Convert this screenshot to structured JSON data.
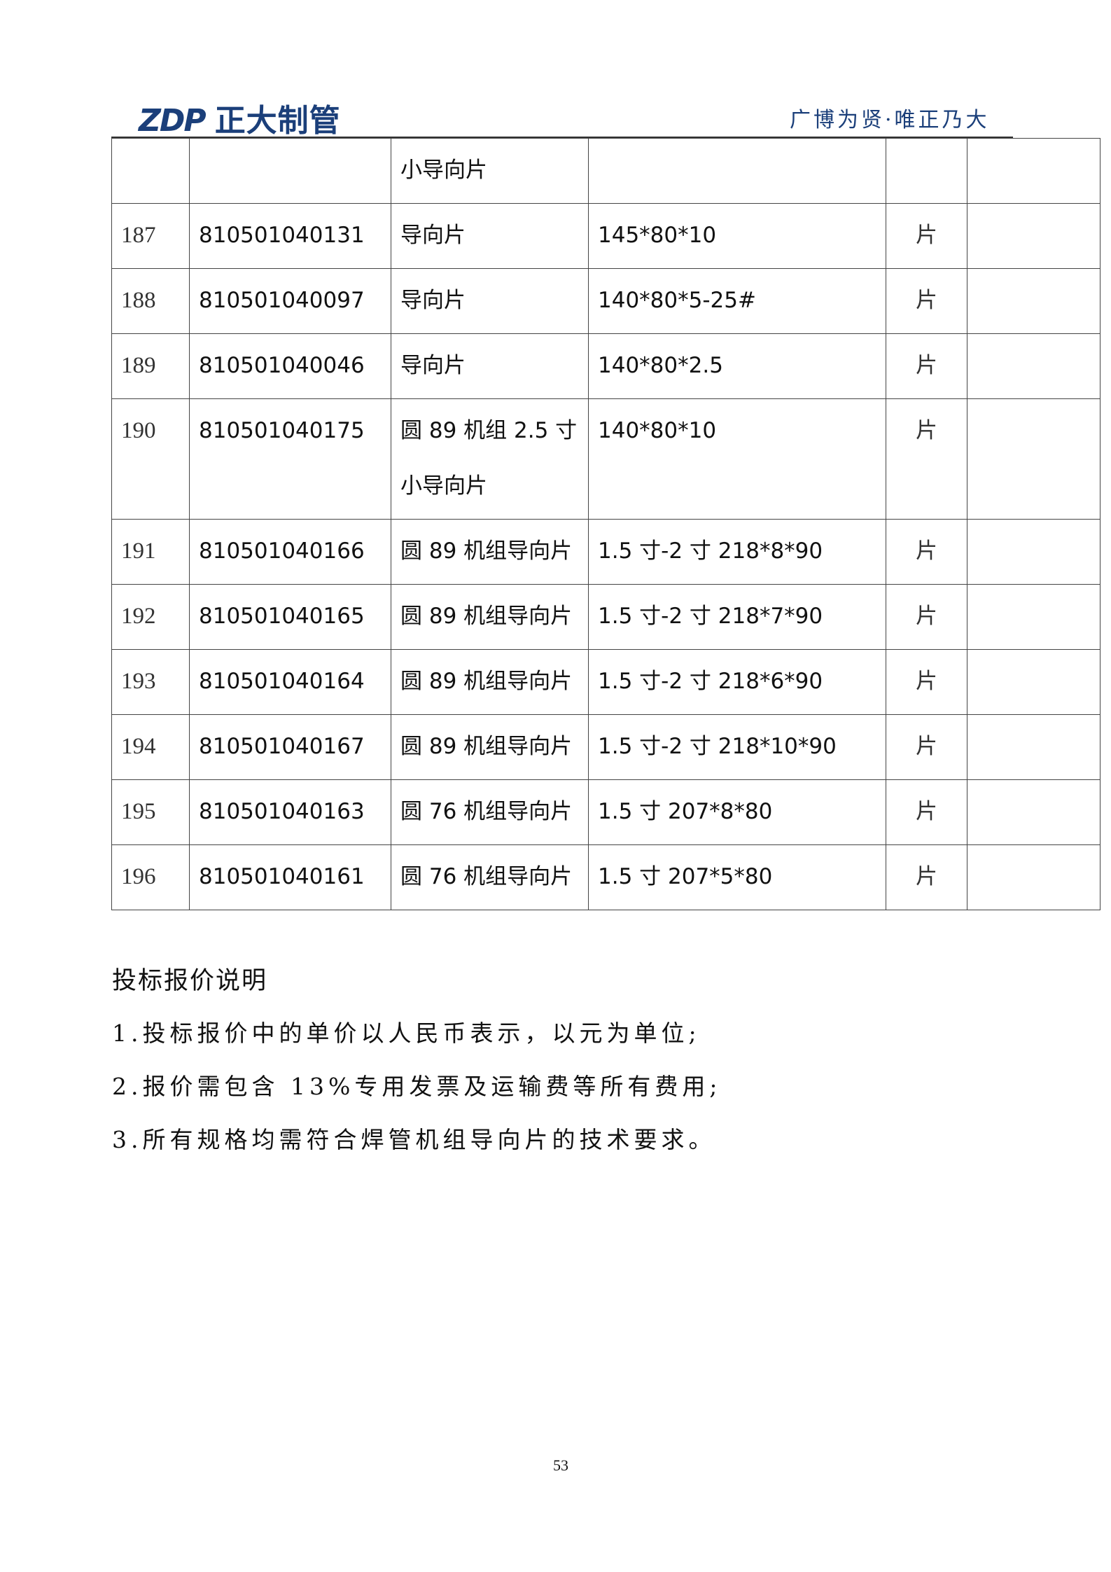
{
  "header": {
    "logo_mark": "ZDP",
    "logo_text": "正大制管",
    "slogan": "广博为贤·唯正乃大"
  },
  "table": {
    "rows": [
      [
        null,
        null,
        "小导向片",
        null,
        null,
        null
      ],
      [
        "187",
        "810501040131",
        "导向片",
        "145*80*10",
        "片",
        null
      ],
      [
        "188",
        "810501040097",
        "导向片",
        "140*80*5-25#",
        "片",
        null
      ],
      [
        "189",
        "810501040046",
        "导向片",
        "140*80*2.5",
        "片",
        null
      ],
      [
        "190",
        "810501040175",
        "圆 89 机组 2.5 寸小导向片",
        "140*80*10",
        "片",
        null
      ],
      [
        "191",
        "810501040166",
        "圆 89 机组导向片",
        "1.5 寸-2 寸 218*8*90",
        "片",
        null
      ],
      [
        "192",
        "810501040165",
        "圆 89 机组导向片",
        "1.5 寸-2 寸 218*7*90",
        "片",
        null
      ],
      [
        "193",
        "810501040164",
        "圆 89 机组导向片",
        "1.5 寸-2 寸 218*6*90",
        "片",
        null
      ],
      [
        "194",
        "810501040167",
        "圆 89 机组导向片",
        "1.5 寸-2 寸 218*10*90",
        "片",
        null
      ],
      [
        "195",
        "810501040163",
        "圆 76 机组导向片",
        "1.5 寸 207*8*80",
        "片",
        null
      ],
      [
        "196",
        "810501040161",
        "圆 76 机组导向片",
        "1.5 寸 207*5*80",
        "片",
        null
      ]
    ]
  },
  "notes": {
    "title": "投标报价说明",
    "items": [
      "1.投标报价中的单价以人民币表示，以元为单位;",
      "2.报价需包含 13%专用发票及运输费等所有费用;",
      "3.所有规格均需符合焊管机组导向片的技术要求。"
    ]
  },
  "footer": {
    "page_number": "53"
  }
}
